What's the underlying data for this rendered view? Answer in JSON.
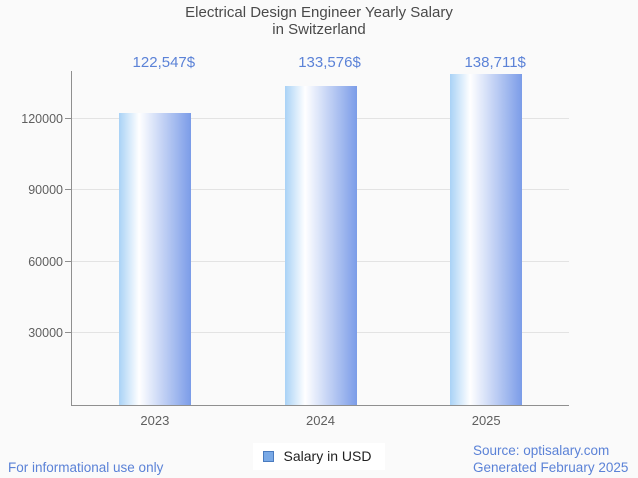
{
  "chart_data": {
    "type": "bar",
    "title": "Electrical Design Engineer Yearly Salary in Switzerland",
    "title_lines": [
      "Electrical Design Engineer Yearly Salary",
      "in Switzerland"
    ],
    "categories": [
      "2023",
      "2024",
      "2025"
    ],
    "values": [
      122547,
      133576,
      138711
    ],
    "value_labels": [
      "122,547$",
      "133,576$",
      "138,711$"
    ],
    "series": [
      {
        "name": "Salary in USD",
        "values": [
          122547,
          133576,
          138711
        ]
      }
    ],
    "xlabel": "",
    "ylabel": "",
    "ylim": [
      0,
      140000
    ],
    "yticks": [
      30000,
      60000,
      90000,
      120000
    ],
    "grid": true,
    "legend": [
      "Salary in USD"
    ],
    "legend_position": "bottom"
  },
  "footer": {
    "left": "For informational use only",
    "source_line1": "Source: optisalary.com",
    "source_line2": "Generated February 2025"
  },
  "colors": {
    "background": "#fafafa",
    "title_color": "#4a4a4a",
    "accent_blue_text": "#5b82d7",
    "axis_label_color": "#5f5f5f",
    "axis_line_color": "#8f8f8f",
    "gridline_color": "#e3e3e3",
    "bar_gradient_left": "#a9d2f6",
    "bar_gradient_mid": "#ffffff",
    "bar_gradient_right": "#7b9ce8",
    "legend_marker_fill": "#79a9e6",
    "legend_marker_border": "#4a7bbf"
  }
}
